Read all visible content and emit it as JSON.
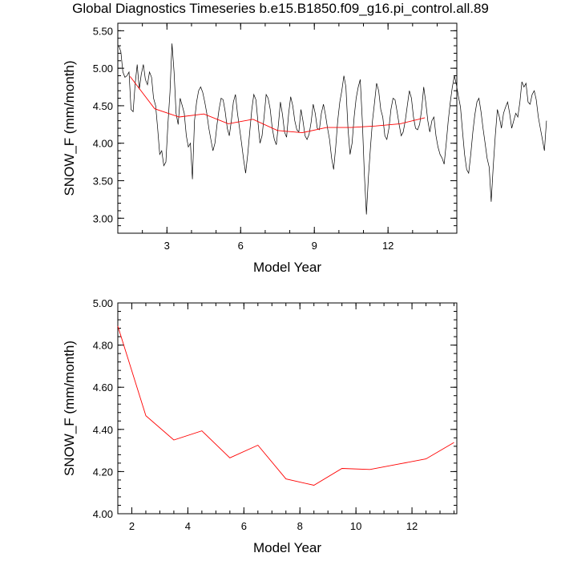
{
  "title": "Global Diagnostics Timeseries b.e15.B1850.f09_g16.pi_control.all.89",
  "colors": {
    "raw": "#000000",
    "annual": "#ff0000"
  },
  "chart_data": [
    {
      "type": "line",
      "xlabel": "Model Year",
      "ylabel": "SNOW_F (mm/month)",
      "xlim": [
        1,
        14.8
      ],
      "ylim": [
        2.8,
        5.6
      ],
      "xticks": [
        3,
        6,
        9,
        12
      ],
      "xtick_labels": [
        "3",
        "6",
        "9",
        "12"
      ],
      "yticks": [
        3.0,
        3.5,
        4.0,
        4.5,
        5.0,
        5.5
      ],
      "ytick_labels": [
        "3.00",
        "3.50",
        "4.00",
        "4.50",
        "5.00",
        "5.50"
      ],
      "series": [
        {
          "style": "black-thin",
          "x_start": 1.04,
          "x_step": 0.0833,
          "values": [
            5.3,
            5.22,
            4.95,
            4.88,
            4.9,
            4.95,
            4.45,
            4.42,
            4.8,
            5.05,
            4.72,
            4.92,
            5.05,
            4.85,
            4.78,
            4.95,
            4.88,
            4.6,
            4.5,
            4.2,
            3.85,
            3.9,
            3.7,
            3.75,
            4.25,
            4.68,
            5.33,
            4.95,
            4.4,
            4.25,
            4.6,
            4.5,
            4.4,
            4.1,
            3.95,
            4.0,
            3.52,
            4.3,
            4.55,
            4.7,
            4.75,
            4.68,
            4.55,
            4.4,
            4.2,
            4.05,
            3.9,
            4.0,
            4.25,
            4.45,
            4.6,
            4.58,
            4.42,
            4.2,
            4.1,
            4.3,
            4.55,
            4.65,
            4.4,
            4.2,
            4.0,
            3.78,
            3.6,
            3.85,
            4.15,
            4.45,
            4.65,
            4.58,
            4.28,
            4.0,
            4.1,
            4.35,
            4.65,
            4.6,
            4.45,
            4.2,
            4.05,
            3.98,
            4.25,
            4.55,
            4.38,
            4.15,
            4.08,
            4.4,
            4.62,
            4.5,
            4.3,
            4.18,
            4.15,
            4.45,
            4.3,
            4.1,
            4.05,
            4.12,
            4.28,
            4.52,
            4.4,
            4.2,
            4.18,
            4.4,
            4.52,
            4.38,
            4.2,
            4.05,
            3.8,
            3.65,
            3.95,
            4.3,
            4.55,
            4.7,
            4.9,
            4.75,
            4.2,
            3.85,
            4.0,
            4.35,
            4.6,
            4.75,
            4.85,
            4.3,
            3.6,
            3.05,
            3.55,
            3.95,
            4.3,
            4.55,
            4.8,
            4.7,
            4.45,
            4.35,
            4.1,
            4.05,
            4.2,
            4.45,
            4.6,
            4.58,
            4.42,
            4.25,
            4.1,
            4.15,
            4.3,
            4.5,
            4.7,
            4.6,
            4.35,
            4.2,
            4.18,
            4.25,
            4.45,
            4.75,
            4.55,
            4.3,
            4.15,
            4.3,
            4.35,
            4.1,
            3.95,
            3.85,
            3.8,
            3.72,
            4.0,
            4.3,
            4.55,
            4.75,
            4.9,
            4.78,
            4.62,
            4.48,
            4.15,
            3.85,
            3.65,
            3.6,
            3.85,
            4.15,
            4.38,
            4.55,
            4.6,
            4.42,
            4.2,
            4.0,
            3.8,
            3.68,
            3.22,
            3.7,
            4.1,
            4.45,
            4.35,
            4.2,
            4.4,
            4.48,
            4.55,
            4.4,
            4.2,
            4.3,
            4.4,
            4.35,
            4.55,
            4.82,
            4.75,
            4.8,
            4.55,
            4.52,
            4.65,
            4.7,
            4.58,
            4.35,
            4.2,
            4.05,
            3.9,
            4.3
          ]
        },
        {
          "style": "red",
          "x": [
            1.5,
            2.5,
            3.5,
            4.5,
            5.5,
            6.5,
            7.5,
            8.5,
            9.5,
            10.5,
            11.5,
            12.5,
            13.5
          ],
          "values": [
            4.89,
            4.46,
            4.35,
            4.39,
            4.26,
            4.32,
            4.17,
            4.14,
            4.21,
            4.21,
            4.23,
            4.26,
            4.34
          ]
        }
      ]
    },
    {
      "type": "line",
      "xlabel": "Model Year",
      "ylabel": "SNOW_F (mm/month)",
      "xlim": [
        1.5,
        13.6
      ],
      "ylim": [
        4.0,
        5.0
      ],
      "xticks": [
        2,
        4,
        6,
        8,
        10,
        12
      ],
      "xtick_labels": [
        "2",
        "4",
        "6",
        "8",
        "10",
        "12"
      ],
      "yticks": [
        4.0,
        4.2,
        4.4,
        4.6,
        4.8,
        5.0
      ],
      "ytick_labels": [
        "4.00",
        "4.20",
        "4.40",
        "4.60",
        "4.80",
        "5.00"
      ],
      "series": [
        {
          "style": "red",
          "x": [
            1.5,
            2.5,
            3.5,
            4.5,
            5.5,
            6.5,
            7.5,
            8.5,
            9.5,
            10.5,
            11.5,
            12.5,
            13.5
          ],
          "values": [
            4.89,
            4.465,
            4.35,
            4.393,
            4.265,
            4.325,
            4.165,
            4.135,
            4.215,
            4.21,
            4.235,
            4.26,
            4.338
          ]
        }
      ]
    }
  ]
}
